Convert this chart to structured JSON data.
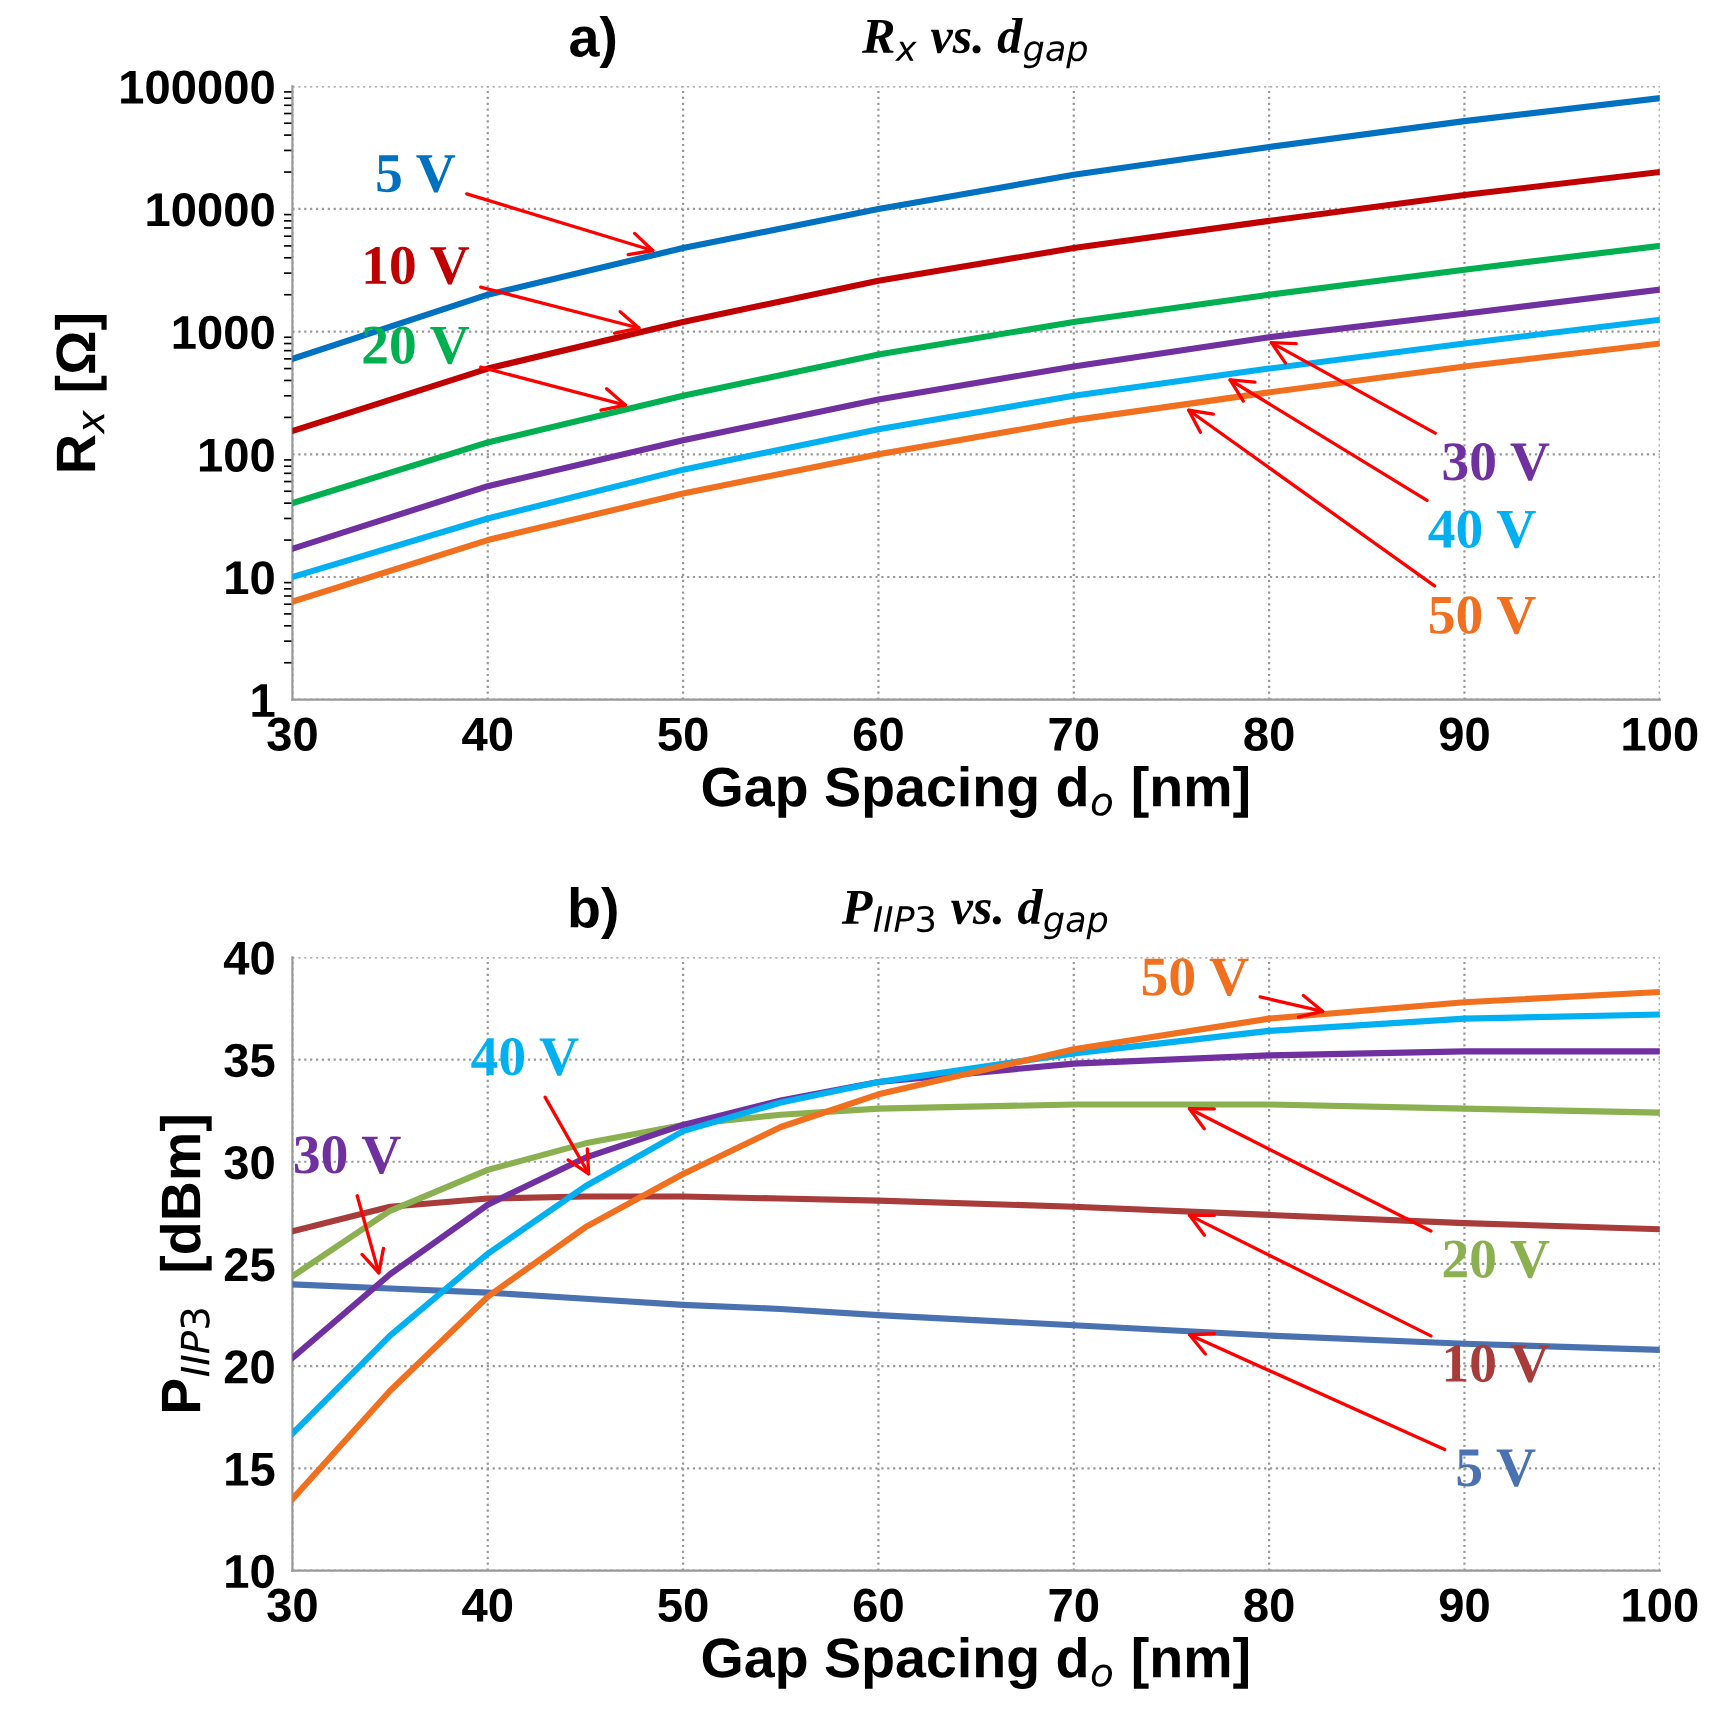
{
  "chart_data": [
    {
      "type": "line",
      "title": "R$_{x}$ vs. d$_{gap}$",
      "xlabel": "Gap Spacing d$_{o}$ [nm]",
      "ylabel": "R$_{x}$ [Ω]",
      "annotations": [
        "a)"
      ],
      "x": [
        30,
        40,
        50,
        60,
        70,
        80,
        90,
        100
      ],
      "xlim": [
        30,
        100
      ],
      "xticks": [
        30,
        40,
        50,
        60,
        70,
        80,
        90,
        100
      ],
      "log": "y",
      "ylim": [
        1,
        100000
      ],
      "yticks": [
        1,
        10,
        100,
        1000,
        10000,
        100000
      ],
      "grid": true,
      "legend": false,
      "marker": "none",
      "line_style": "solid",
      "series": [
        {
          "name": "5 V",
          "color": "#0070c0",
          "values": [
            600,
            2000,
            4800,
            10000,
            19000,
            32000,
            52000,
            80000
          ]
        },
        {
          "name": "10 V",
          "color": "#c00000",
          "values": [
            155,
            500,
            1200,
            2600,
            4800,
            8000,
            13000,
            20000
          ]
        },
        {
          "name": "20 V",
          "color": "#00b050",
          "values": [
            40,
            125,
            300,
            650,
            1200,
            2000,
            3200,
            5000
          ]
        },
        {
          "name": "30 V",
          "color": "#7030a0",
          "values": [
            17,
            55,
            130,
            280,
            520,
            900,
            1400,
            2200
          ]
        },
        {
          "name": "40 V",
          "color": "#00b0f0",
          "values": [
            10,
            30,
            75,
            160,
            300,
            500,
            800,
            1250
          ]
        },
        {
          "name": "50 V",
          "color": "#f07020",
          "values": [
            6.3,
            20,
            48,
            100,
            190,
            320,
            520,
            800
          ]
        }
      ]
    },
    {
      "type": "line",
      "title": "P$_{IIP3}$ vs. d$_{gap}$",
      "xlabel": "Gap Spacing d$_{o}$ [nm]",
      "ylabel": "P$_{IIP3}$  [dBm]",
      "annotations": [
        "b)"
      ],
      "x": [
        30,
        35,
        40,
        45,
        50,
        55,
        60,
        70,
        80,
        90,
        100
      ],
      "xlim": [
        30,
        100
      ],
      "xticks": [
        30,
        40,
        50,
        60,
        70,
        80,
        90,
        100
      ],
      "ylim": [
        10,
        40
      ],
      "yticks": [
        10,
        15,
        20,
        25,
        30,
        35,
        40
      ],
      "grid": true,
      "legend": false,
      "marker": "none",
      "line_style": "solid",
      "series": [
        {
          "name": "5 V",
          "color": "#4a72b0",
          "values": [
            24,
            23.8,
            23.6,
            23.3,
            23.0,
            22.8,
            22.5,
            22.0,
            21.5,
            21.1,
            20.8
          ]
        },
        {
          "name": "10 V",
          "color": "#a83c3a",
          "values": [
            26.6,
            27.8,
            28.2,
            28.3,
            28.3,
            28.2,
            28.1,
            27.8,
            27.4,
            27.0,
            26.7
          ]
        },
        {
          "name": "20 V",
          "color": "#8ab050",
          "values": [
            24.4,
            27.6,
            29.6,
            30.9,
            31.8,
            32.3,
            32.6,
            32.8,
            32.8,
            32.6,
            32.4
          ]
        },
        {
          "name": "30 V",
          "color": "#7030a0",
          "values": [
            20.4,
            24.5,
            27.9,
            30.2,
            31.8,
            33.0,
            33.9,
            34.8,
            35.2,
            35.4,
            35.4
          ]
        },
        {
          "name": "40 V",
          "color": "#00b0f0",
          "values": [
            16.7,
            21.5,
            25.5,
            28.8,
            31.5,
            32.9,
            33.9,
            35.3,
            36.4,
            37.0,
            37.2
          ]
        },
        {
          "name": "50 V",
          "color": "#f07020",
          "values": [
            13.5,
            18.8,
            23.4,
            26.8,
            29.4,
            31.7,
            33.3,
            35.5,
            37.0,
            37.8,
            38.3
          ]
        }
      ]
    }
  ]
}
